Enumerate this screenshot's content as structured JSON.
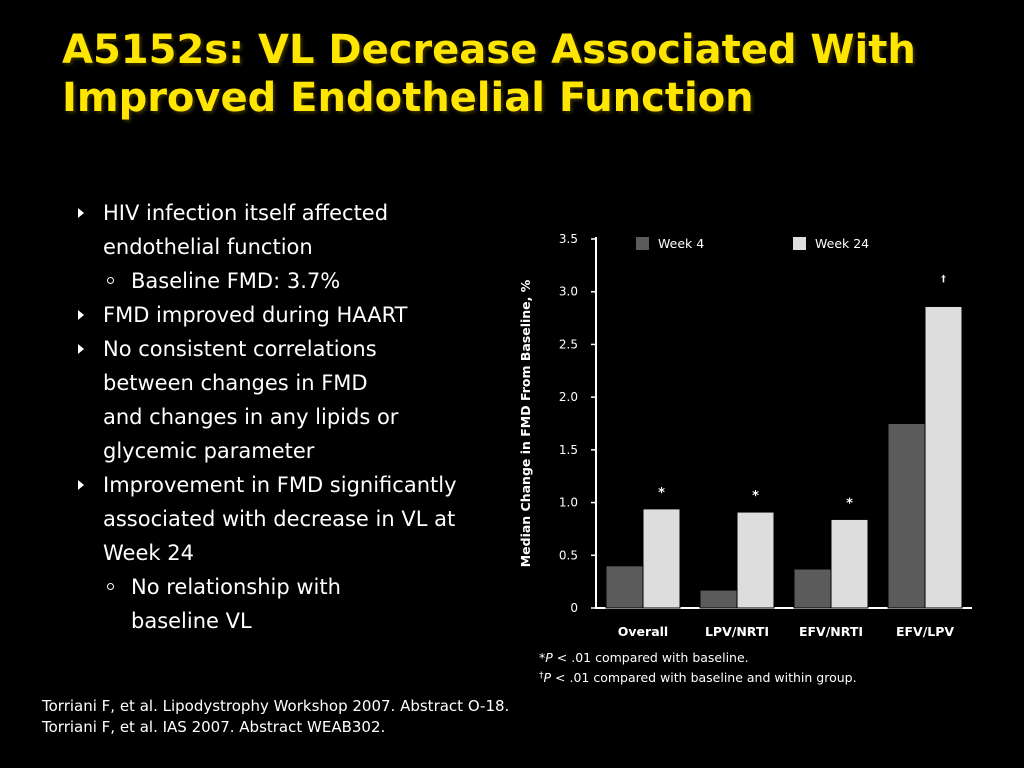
{
  "title": "A5152s: VL Decrease Associated With Improved Endothelial Function",
  "bullets": [
    {
      "level": 1,
      "lines": [
        "HIV infection itself affected",
        "endothelial function"
      ]
    },
    {
      "level": 2,
      "lines": [
        "Baseline FMD: 3.7%"
      ]
    },
    {
      "level": 1,
      "lines": [
        "FMD improved during HAART"
      ]
    },
    {
      "level": 1,
      "lines": [
        "No consistent correlations",
        "between changes in FMD",
        "and changes in any lipids or",
        "glycemic parameter"
      ]
    },
    {
      "level": 1,
      "lines": [
        "Improvement in FMD significantly",
        "associated with decrease in VL at",
        "Week 24"
      ]
    },
    {
      "level": 2,
      "lines": [
        "No relationship with",
        "baseline VL"
      ]
    }
  ],
  "chart_data": {
    "type": "bar",
    "title": "",
    "ylabel": "Median Change in FMD From Baseline, %",
    "xlabel": "",
    "ylim": [
      0,
      3.5
    ],
    "yticks": [
      "0",
      "0.5",
      "1.0",
      "1.5",
      "2.0",
      "2.5",
      "3.0",
      "3.5"
    ],
    "categories": [
      "Overall",
      "LPV/NRTI",
      "EFV/NRTI",
      "EFV/LPV"
    ],
    "series": [
      {
        "name": "Week 4",
        "values": [
          0.4,
          0.17,
          0.37,
          1.75
        ],
        "color": "#5b5b5b"
      },
      {
        "name": "Week 24",
        "values": [
          0.94,
          0.91,
          0.84,
          2.86
        ],
        "color": "#dddddd"
      }
    ],
    "annotations": [
      "*",
      "*",
      "*",
      "†"
    ],
    "legend_position": "top",
    "footnotes": [
      {
        "symbol": "*",
        "italic": "P",
        "text": " < .01 compared with baseline."
      },
      {
        "symbol": "†",
        "italic": "P",
        "text": " < .01 compared with baseline and within group."
      }
    ]
  },
  "references": [
    "Torriani F, et al. Lipodystrophy Workshop 2007. Abstract O-18.",
    "Torriani F, et al. IAS 2007. Abstract WEAB302."
  ]
}
